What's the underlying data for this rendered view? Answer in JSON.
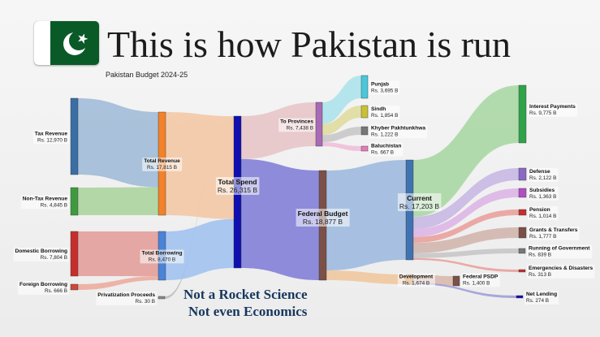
{
  "header": {
    "title": "This is how Pakistan is run",
    "subtitle": "Pakistan Budget 2024-25",
    "flag_icon": "pakistan-flag-icon"
  },
  "chart_data": {
    "type": "sankey",
    "title": "This is how Pakistan is run",
    "subtitle": "Pakistan Budget 2024-25",
    "unit": "Rs. B",
    "nodes": [
      {
        "id": "tax",
        "name": "Tax Revenue",
        "value_label": "Rs. 12,970 B",
        "value": 12970,
        "color": "#3a6ea5"
      },
      {
        "id": "nontax",
        "name": "Non-Tax Revenue",
        "value_label": "Rs. 4,845 B",
        "value": 4845,
        "color": "#3f9a3f"
      },
      {
        "id": "domborrow",
        "name": "Domestic Borrowing",
        "value_label": "Rs. 7,804 B",
        "value": 7804,
        "color": "#c62e2e"
      },
      {
        "id": "forborrow",
        "name": "Foreign Borrowing",
        "value_label": "Rs. 666 B",
        "value": 666,
        "color": "#c94a3a"
      },
      {
        "id": "privat",
        "name": "Privatization Proceeds",
        "value_label": "Rs. 30 B",
        "value": 30,
        "color": "#8a8a8a"
      },
      {
        "id": "totrev",
        "name": "Total Revenue",
        "value_label": "Rs. 17,815 B",
        "value": 17815,
        "color": "#f2822a"
      },
      {
        "id": "totborrow",
        "name": "Total Borrowing",
        "value_label": "Rs. 8,470 B",
        "value": 8470,
        "color": "#4a84d8"
      },
      {
        "id": "totspend",
        "name": "Total Spend",
        "value_label": "Rs. 26,315 B",
        "value": 26315,
        "color": "#1010b0"
      },
      {
        "id": "provinces",
        "name": "To Provinces",
        "value_label": "Rs. 7,438 B",
        "value": 7438,
        "color": "#a76ab5"
      },
      {
        "id": "federal",
        "name": "Federal Budget",
        "value_label": "Rs. 18,877 B",
        "value": 18877,
        "color": "#7a5048"
      },
      {
        "id": "punjab",
        "name": "Punjab",
        "value_label": "Rs. 3,695 B",
        "value": 3695,
        "color": "#4cc6d9"
      },
      {
        "id": "sindh",
        "name": "Sindh",
        "value_label": "Rs. 1,854 B",
        "value": 1854,
        "color": "#c9c03a"
      },
      {
        "id": "kp",
        "name": "Khyber Pakhtunkhwa",
        "value_label": "Rs. 1,222 B",
        "value": 1222,
        "color": "#777777"
      },
      {
        "id": "baloch",
        "name": "Baluchistan",
        "value_label": "Rs. 667 B",
        "value": 667,
        "color": "#e87ab8"
      },
      {
        "id": "current",
        "name": "Current",
        "value_label": "Rs. 17,203 B",
        "value": 17203,
        "color": "#3f72b0"
      },
      {
        "id": "development",
        "name": "Development",
        "value_label": "Rs. 1,674 B",
        "value": 1674,
        "color": "#d8934d"
      },
      {
        "id": "psdp",
        "name": "Federal PSDP",
        "value_label": "Rs. 1,400 B",
        "value": 1400,
        "color": "#7a5048"
      },
      {
        "id": "netlend",
        "name": "Net Lending",
        "value_label": "Rs. 274 B",
        "value": 274,
        "color": "#1010b0"
      },
      {
        "id": "interest",
        "name": "Interest Payments",
        "value_label": "Rs. 9,775 B",
        "value": 9775,
        "color": "#2fa24a"
      },
      {
        "id": "defense",
        "name": "Defense",
        "value_label": "Rs. 2,122 B",
        "value": 2122,
        "color": "#8a68c4"
      },
      {
        "id": "subsidies",
        "name": "Subsidies",
        "value_label": "Rs. 1,363 B",
        "value": 1363,
        "color": "#b04fc2"
      },
      {
        "id": "pension",
        "name": "Pension",
        "value_label": "Rs. 1,014 B",
        "value": 1014,
        "color": "#c62e2e"
      },
      {
        "id": "grants",
        "name": "Grants & Transfers",
        "value_label": "Rs. 1,777 B",
        "value": 1777,
        "color": "#7a5048"
      },
      {
        "id": "running",
        "name": "Running of Government",
        "value_label": "Rs. 839 B",
        "value": 839,
        "color": "#777777"
      },
      {
        "id": "emergencies",
        "name": "Emergencies & Disasters",
        "value_label": "Rs. 313 B",
        "value": 313,
        "color": "#c62e2e"
      }
    ],
    "links": [
      {
        "source": "tax",
        "target": "totrev",
        "value": 12970,
        "color": "#9cb8d6"
      },
      {
        "source": "nontax",
        "target": "totrev",
        "value": 4845,
        "color": "#a9d29a"
      },
      {
        "source": "domborrow",
        "target": "totborrow",
        "value": 7804,
        "color": "#e29a95"
      },
      {
        "source": "forborrow",
        "target": "totborrow",
        "value": 666,
        "color": "#eca89a"
      },
      {
        "source": "privat",
        "target": "totspend",
        "value": 30,
        "color": "#bbbbbb"
      },
      {
        "source": "totrev",
        "target": "totspend",
        "value": 17815,
        "color": "#f3c5a2"
      },
      {
        "source": "totborrow",
        "target": "totspend",
        "value": 8470,
        "color": "#9dc0ee"
      },
      {
        "source": "totspend",
        "target": "provinces",
        "value": 7438,
        "color": "#e6c2c6"
      },
      {
        "source": "totspend",
        "target": "federal",
        "value": 18877,
        "color": "#7b79d6"
      },
      {
        "source": "provinces",
        "target": "punjab",
        "value": 3695,
        "color": "#a9e2ea"
      },
      {
        "source": "provinces",
        "target": "sindh",
        "value": 1854,
        "color": "#dedb9a"
      },
      {
        "source": "provinces",
        "target": "kp",
        "value": 1222,
        "color": "#c6c6c6"
      },
      {
        "source": "provinces",
        "target": "baloch",
        "value": 667,
        "color": "#f0bcd9"
      },
      {
        "source": "federal",
        "target": "current",
        "value": 17203,
        "color": "#9ab7de"
      },
      {
        "source": "federal",
        "target": "development",
        "value": 1674,
        "color": "#f0c49a"
      },
      {
        "source": "development",
        "target": "psdp",
        "value": 1400,
        "color": "#d8b5a8"
      },
      {
        "source": "development",
        "target": "netlend",
        "value": 274,
        "color": "#9a9ad8"
      },
      {
        "source": "current",
        "target": "interest",
        "value": 9775,
        "color": "#a6d6a0"
      },
      {
        "source": "current",
        "target": "defense",
        "value": 2122,
        "color": "#c5b5e3"
      },
      {
        "source": "current",
        "target": "subsidies",
        "value": 1363,
        "color": "#dcb2e5"
      },
      {
        "source": "current",
        "target": "pension",
        "value": 1014,
        "color": "#e99c98"
      },
      {
        "source": "current",
        "target": "grants",
        "value": 1777,
        "color": "#cfb3a9"
      },
      {
        "source": "current",
        "target": "running",
        "value": 839,
        "color": "#c4c4c4"
      },
      {
        "source": "current",
        "target": "emergencies",
        "value": 313,
        "color": "#e99c98"
      }
    ]
  },
  "tagline": {
    "line1": "Not a Rocket Science",
    "line2": "Not even Economics"
  }
}
